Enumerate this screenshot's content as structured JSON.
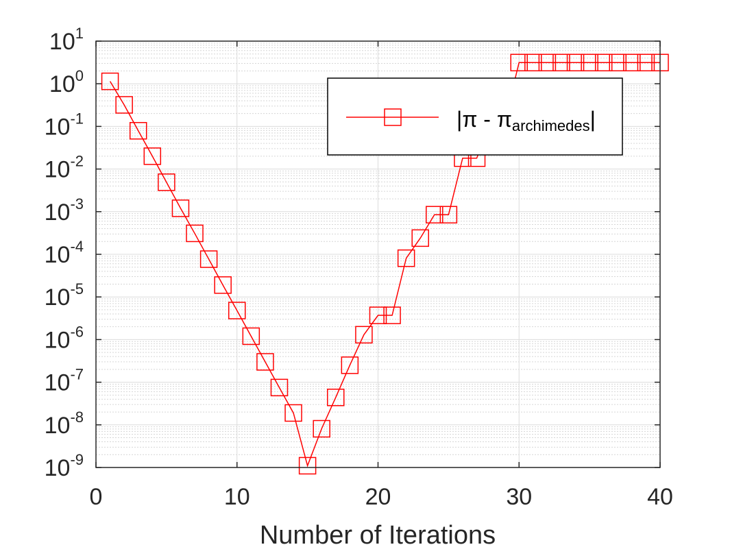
{
  "chart_data": {
    "type": "line",
    "title": "",
    "xlabel": "Number of Iterations",
    "ylabel": "",
    "xlim": [
      0,
      40
    ],
    "ylim": [
      1e-09,
      10
    ],
    "yscale": "log",
    "grid": true,
    "minor_grid": true,
    "legend_position": "top-right",
    "x_ticks": [
      0,
      10,
      20,
      30,
      40
    ],
    "x_tick_labels": [
      "0",
      "10",
      "20",
      "30",
      "40"
    ],
    "y_ticks": [
      {
        "value": 10.0,
        "base": "10",
        "exp": "1"
      },
      {
        "value": 1.0,
        "base": "10",
        "exp": "0"
      },
      {
        "value": 0.1,
        "base": "10",
        "exp": "-1"
      },
      {
        "value": 0.01,
        "base": "10",
        "exp": "-2"
      },
      {
        "value": 0.001,
        "base": "10",
        "exp": "-3"
      },
      {
        "value": 0.0001,
        "base": "10",
        "exp": "-4"
      },
      {
        "value": 1e-05,
        "base": "10",
        "exp": "-5"
      },
      {
        "value": 1e-06,
        "base": "10",
        "exp": "-6"
      },
      {
        "value": 1e-07,
        "base": "10",
        "exp": "-7"
      },
      {
        "value": 1e-08,
        "base": "10",
        "exp": "-8"
      },
      {
        "value": 1e-09,
        "base": "10",
        "exp": "-9"
      }
    ],
    "legend": {
      "main": "|π - π",
      "sub": "archimedes",
      "end": "|"
    },
    "series": [
      {
        "color": "#ff0000",
        "marker": "square",
        "x": [
          1,
          2,
          3,
          4,
          5,
          6,
          7,
          8,
          9,
          10,
          11,
          12,
          13,
          14,
          15,
          16,
          17,
          18,
          19,
          20,
          21,
          22,
          23,
          24,
          25,
          26,
          27,
          28,
          29,
          30,
          31,
          32,
          33,
          34,
          35,
          36,
          37,
          38,
          39,
          40
        ],
        "y": [
          1.14,
          0.32,
          0.079,
          0.02,
          0.0049,
          0.0012,
          0.00031,
          7.7e-05,
          1.9e-05,
          4.8e-06,
          1.2e-06,
          3e-07,
          7.5e-08,
          1.9e-08,
          1.1e-09,
          8.1e-09,
          4.4e-08,
          2.5e-07,
          1.3e-06,
          3.7e-06,
          3.7e-06,
          8.1e-05,
          0.00024,
          0.00085,
          0.00085,
          0.018,
          0.018,
          0.14,
          0.14,
          3.14,
          3.14,
          3.14,
          3.14,
          3.14,
          3.14,
          3.14,
          3.14,
          3.14,
          3.14,
          3.14
        ]
      }
    ]
  }
}
